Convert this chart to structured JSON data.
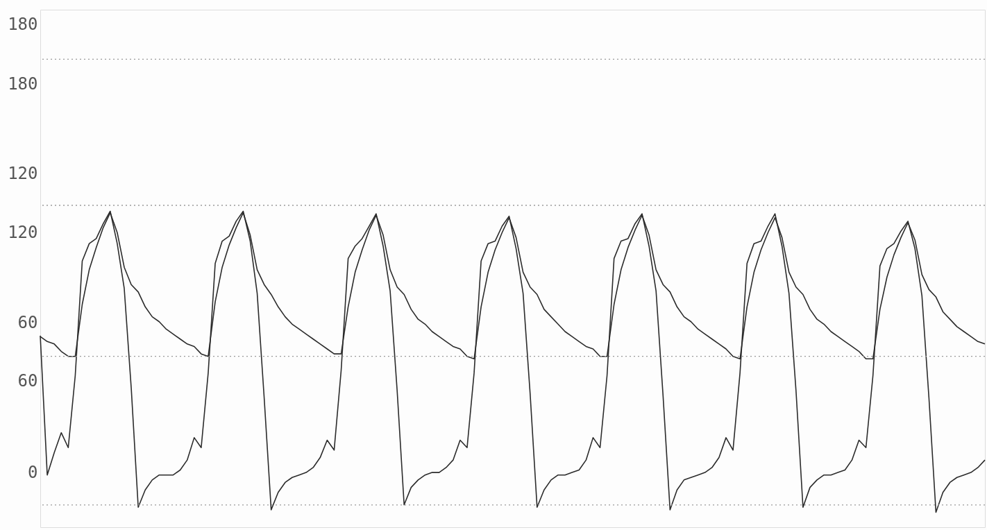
{
  "chart_data": {
    "type": "line",
    "categories": [
      null,
      null,
      null,
      null,
      null,
      null,
      null,
      null,
      null,
      null,
      null,
      null,
      null,
      null,
      null,
      null,
      null,
      null,
      null,
      null,
      null,
      null,
      null,
      null,
      null,
      null,
      null,
      null,
      null,
      null,
      null,
      null,
      null,
      null,
      null,
      null,
      null,
      null,
      null,
      null,
      null,
      null,
      null,
      null,
      null,
      null,
      null,
      null,
      null,
      null,
      null,
      null,
      null,
      null,
      null,
      null,
      null,
      null,
      null,
      null,
      null,
      null,
      null,
      null,
      null,
      null,
      null,
      null,
      null,
      null,
      null,
      null,
      null,
      null,
      null,
      null,
      null,
      null,
      null,
      null,
      null,
      null,
      null,
      null,
      null,
      null,
      null,
      null,
      null,
      null,
      null,
      null,
      null,
      null,
      null,
      null,
      null,
      null,
      null,
      null,
      null,
      null,
      null,
      null,
      null,
      null,
      null,
      null,
      null,
      null,
      null,
      null,
      null,
      null,
      null,
      null,
      null,
      null,
      null,
      null,
      null,
      null,
      null,
      null,
      null,
      null,
      null,
      null,
      null,
      null,
      null,
      null,
      null,
      null,
      null,
      null
    ],
    "series": [
      {
        "color": "#2b2b2b",
        "axis": "y",
        "values": [
          55,
          -1,
          8,
          16,
          10,
          39,
          85,
          92,
          94,
          100,
          105,
          92,
          74,
          34,
          -14,
          -7,
          -3,
          -1,
          -1,
          -1,
          1,
          5,
          14,
          10,
          40,
          84,
          93,
          95,
          101,
          105,
          93,
          72,
          30,
          -15,
          -8,
          -4,
          -2,
          -1,
          0,
          2,
          6,
          13,
          9,
          41,
          86,
          91,
          94,
          99,
          104,
          91,
          73,
          33,
          -13,
          -6,
          -3,
          -1,
          0,
          0,
          2,
          5,
          13,
          10,
          40,
          85,
          92,
          93,
          99,
          103,
          90,
          72,
          32,
          -14,
          -7,
          -3,
          -1,
          -1,
          0,
          1,
          5,
          14,
          10,
          39,
          86,
          93,
          94,
          100,
          104,
          91,
          73,
          31,
          -15,
          -7,
          -3,
          -2,
          -1,
          0,
          2,
          6,
          14,
          9,
          40,
          84,
          92,
          93,
          99,
          104,
          91,
          72,
          33,
          -14,
          -6,
          -3,
          -1,
          -1,
          0,
          1,
          5,
          13,
          10,
          39,
          83,
          90,
          92,
          97,
          101,
          90,
          71,
          30,
          -16,
          -8,
          -4,
          -2,
          -1,
          0,
          2,
          5
        ]
      },
      {
        "color": "#2b2b2b",
        "axis": "y2",
        "values": [
          78,
          76,
          75,
          72,
          70,
          70,
          91,
          105,
          114,
          122,
          128,
          120,
          106,
          99,
          96,
          90,
          86,
          84,
          81,
          79,
          77,
          75,
          74,
          71,
          70,
          92,
          106,
          115,
          122,
          128,
          119,
          105,
          99,
          95,
          90,
          86,
          83,
          81,
          79,
          77,
          75,
          73,
          71,
          71,
          90,
          104,
          113,
          121,
          127,
          119,
          105,
          98,
          95,
          89,
          85,
          83,
          80,
          78,
          76,
          74,
          73,
          70,
          69,
          90,
          104,
          113,
          120,
          126,
          118,
          104,
          98,
          95,
          89,
          86,
          83,
          80,
          78,
          76,
          74,
          73,
          70,
          70,
          91,
          105,
          114,
          121,
          127,
          119,
          105,
          99,
          96,
          90,
          86,
          84,
          81,
          79,
          77,
          75,
          73,
          70,
          69,
          90,
          104,
          113,
          120,
          126,
          118,
          104,
          98,
          95,
          89,
          85,
          83,
          80,
          78,
          76,
          74,
          72,
          69,
          69,
          89,
          102,
          111,
          118,
          124,
          117,
          103,
          97,
          94,
          88,
          85,
          82,
          80,
          78,
          76,
          75
        ]
      }
    ],
    "ylim": [
      -22,
      186
    ],
    "yticks": [
      0,
      60,
      120,
      180
    ],
    "y2lim": [
      1,
      210
    ],
    "y2ticks": [
      60,
      120,
      180
    ],
    "ref_lines": [
      {
        "axis": "y2",
        "value": 190,
        "color": "#9a9a9a",
        "line_style": "dotted"
      },
      {
        "axis": "y2",
        "value": 131,
        "color": "#9a9a9a",
        "line_style": "dotted"
      },
      {
        "axis": "y2",
        "value": 70,
        "color": "#9a9a9a",
        "line_style": "dotted"
      },
      {
        "axis": "y2",
        "value": 10,
        "color": "#9a9a9a",
        "line_style": "dotted"
      }
    ]
  }
}
